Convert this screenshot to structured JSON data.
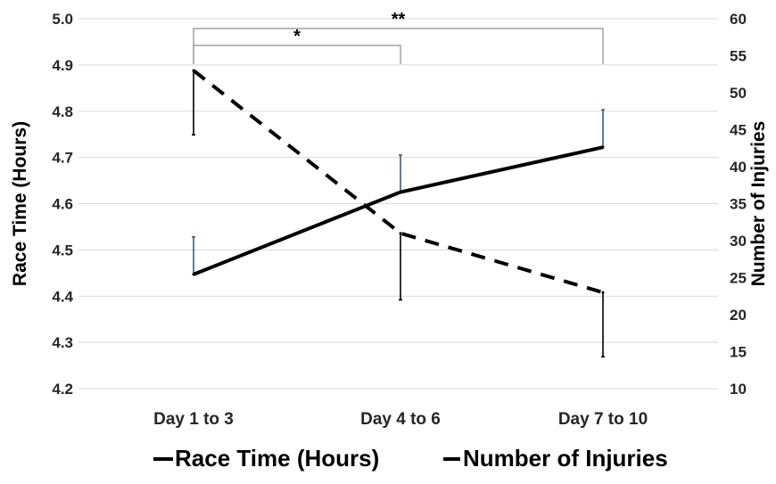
{
  "chart_data": {
    "type": "line",
    "categories": [
      "Day 1 to 3",
      "Day 4 to 6",
      "Day 7 to 10"
    ],
    "y_left": {
      "label": "Race Time (Hours)",
      "ylim": [
        4.2,
        5.0
      ],
      "ticks": [
        "4.2",
        "4.3",
        "4.4",
        "4.5",
        "4.6",
        "4.7",
        "4.8",
        "4.9",
        "5.0"
      ]
    },
    "y_right": {
      "label": "Number of Injuries",
      "ylim": [
        10,
        60
      ],
      "ticks": [
        "10",
        "15",
        "20",
        "25",
        "30",
        "35",
        "40",
        "45",
        "50",
        "55",
        "60"
      ]
    },
    "series": [
      {
        "name": "Race Time (Hours)",
        "axis": "left",
        "style": "solid",
        "color": "#000000",
        "values": [
          4.447,
          4.625,
          4.722
        ],
        "error_upper": [
          4.528,
          4.705,
          4.803
        ],
        "error_color": "#3a5a85"
      },
      {
        "name": "Number of Injuries",
        "axis": "right",
        "style": "dashed",
        "color": "#000000",
        "values": [
          53.0,
          31.0,
          23.0
        ],
        "error_lower": [
          44.3,
          22.0,
          14.3
        ],
        "error_color": "#000000"
      }
    ],
    "significance": [
      {
        "from": 0,
        "to": 1,
        "label": "*"
      },
      {
        "from": 0,
        "to": 2,
        "label": "**"
      }
    ],
    "grid": true,
    "legend_position": "bottom"
  }
}
